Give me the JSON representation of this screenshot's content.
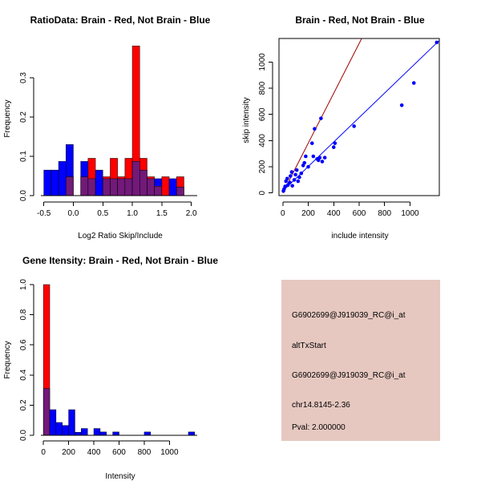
{
  "colors": {
    "red": "#ff0000",
    "blue": "#0000ff",
    "overlap": "#72197a",
    "panel_bg": "#e6c8c0",
    "pval": "#aa0000",
    "ref_line": "#a00000"
  },
  "chart_data": [
    {
      "id": "ratio-hist",
      "type": "bar",
      "title": "RatioData: Brain - Red, Not Brain - Blue",
      "xlabel": "Log2 Ratio Skip/Include",
      "ylabel": "Frequency",
      "xlim": [
        -0.55,
        2.1
      ],
      "ylim": [
        0,
        0.4
      ],
      "xticks": [
        "-0.5",
        "0.0",
        "0.5",
        "1.0",
        "1.5",
        "2.0"
      ],
      "yticks": [
        "0.0",
        "0.1",
        "0.2",
        "0.3"
      ],
      "bin_start": -0.5,
      "bin_width": 0.125,
      "series": [
        {
          "name": "Not Brain",
          "color": "blue",
          "values": [
            0.065,
            0.065,
            0.087,
            0.13,
            0,
            0.087,
            0.043,
            0.065,
            0.043,
            0.043,
            0.043,
            0.043,
            0.087,
            0.065,
            0.043,
            0.043,
            0,
            0.043,
            0.022
          ]
        },
        {
          "name": "Brain",
          "color": "red",
          "values": [
            0,
            0,
            0,
            0.048,
            0,
            0.048,
            0.095,
            0,
            0.048,
            0.095,
            0.048,
            0.095,
            0.381,
            0.095,
            0.048,
            0.024,
            0.048,
            0,
            0.048
          ]
        }
      ]
    },
    {
      "id": "scatter",
      "type": "scatter",
      "title": "Brain - Red, Not Brain - Blue",
      "xlabel": "include intensity",
      "ylabel": "skip intensity",
      "xlim": [
        -30,
        1230
      ],
      "ylim": [
        -20,
        1180
      ],
      "xticks": [
        "0",
        "200",
        "400",
        "600",
        "800",
        "1000"
      ],
      "yticks": [
        "0",
        "200",
        "400",
        "600",
        "800",
        "1000"
      ],
      "points": [
        [
          5,
          15
        ],
        [
          10,
          30
        ],
        [
          18,
          50
        ],
        [
          25,
          90
        ],
        [
          35,
          110
        ],
        [
          40,
          60
        ],
        [
          55,
          80
        ],
        [
          60,
          130
        ],
        [
          70,
          160
        ],
        [
          75,
          55
        ],
        [
          90,
          100
        ],
        [
          100,
          140
        ],
        [
          110,
          175
        ],
        [
          120,
          90
        ],
        [
          130,
          120
        ],
        [
          145,
          150
        ],
        [
          160,
          210
        ],
        [
          170,
          230
        ],
        [
          180,
          280
        ],
        [
          200,
          200
        ],
        [
          230,
          380
        ],
        [
          240,
          280
        ],
        [
          250,
          490
        ],
        [
          270,
          260
        ],
        [
          280,
          250
        ],
        [
          290,
          270
        ],
        [
          300,
          570
        ],
        [
          310,
          240
        ],
        [
          330,
          270
        ],
        [
          400,
          350
        ],
        [
          410,
          380
        ],
        [
          560,
          510
        ],
        [
          935,
          670
        ],
        [
          1030,
          840
        ],
        [
          1210,
          1150
        ]
      ],
      "fit_blue": {
        "x": [
          0,
          1230
        ],
        "y": [
          15,
          1165
        ]
      },
      "fit_red": {
        "x": [
          0,
          620
        ],
        "y": [
          0,
          1180
        ]
      }
    },
    {
      "id": "intensity-hist",
      "type": "bar",
      "title": "Gene Itensity: Brain - Red, Not Brain - Blue",
      "xlabel": "Intensity",
      "ylabel": "Frequency",
      "xlim": [
        -20,
        1220
      ],
      "ylim": [
        0,
        1.0
      ],
      "xticks": [
        "0",
        "200",
        "400",
        "600",
        "800",
        "1000"
      ],
      "yticks": [
        "0.0",
        "0.2",
        "0.4",
        "0.6",
        "0.8",
        "1.0"
      ],
      "bin_start": 0,
      "bin_width": 50,
      "series": [
        {
          "name": "Not Brain",
          "color": "blue",
          "values": [
            0.31,
            0.17,
            0.085,
            0.065,
            0.17,
            0.02,
            0.045,
            0,
            0.045,
            0.022,
            0,
            0.022,
            0,
            0,
            0,
            0,
            0.022,
            0,
            0,
            0,
            0,
            0,
            0,
            0.022
          ]
        },
        {
          "name": "Brain",
          "color": "red",
          "values": [
            1.0,
            0,
            0,
            0,
            0,
            0,
            0,
            0,
            0,
            0,
            0,
            0,
            0,
            0,
            0,
            0,
            0,
            0,
            0,
            0,
            0,
            0,
            0,
            0
          ]
        }
      ]
    }
  ],
  "info_panel": {
    "probe_id": "G6902699@J919039_RC@i_at",
    "event_type": "altTxStart",
    "probe_id_2": "G6902699@J919039_RC@i_at",
    "location": "chr14.8145-2.36",
    "pval": "Pval: 2.000000"
  }
}
